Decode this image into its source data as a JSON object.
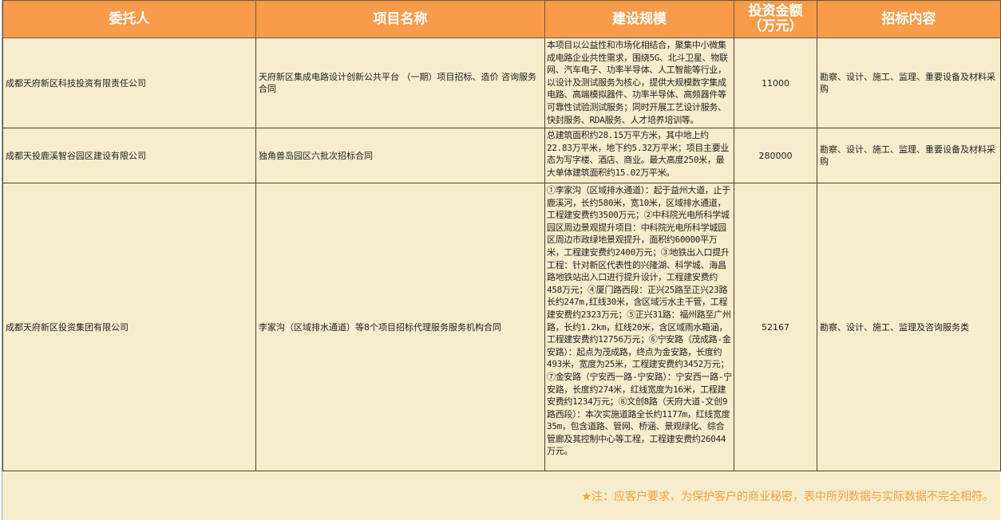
{
  "header": {
    "columns": [
      "委托人",
      "项目名称",
      "建设规模",
      "投资金额\n（万元）",
      "招标内容"
    ],
    "investment_line1": "投资金额",
    "investment_line2": "（万元）"
  },
  "rows": [
    {
      "client": "成都天府新区科技投资有限责任公司",
      "project": "天府新区集成电路设计创新公共平台 （一期）项目招标、造价 咨询服务合同",
      "scale": "本项目以公益性和市场化相结合，聚集中小微集成电路企业共性需求，围绕5G、北斗卫星、物联网、汽车电子、功率半导体、人工智能等行业，以设计及测试服务为核心，提供大规模数字集成电路、高端模拟器件、功率半导体、高频器件等可靠性试验测试服务；同时开展工艺设计服务、快封服务、RDA服务、人才培养培训等。",
      "amount": "11000",
      "content": "勘察、设计、施工、监理、重要设备及材料采购"
    },
    {
      "client": "成都天投鹿溪智谷园区建设有限公司",
      "project": "独角兽岛园区六批次招标合同",
      "scale": "总建筑面积约28.15万平方米，其中地上约22.83万平米，地下约5.32万平米；项目主要业态为写字楼、酒店、商业。最大高度250米，最大单体建筑面积约15.02万平米。",
      "amount": "280000",
      "content": "勘察、设计、施工、监理、重要设备及材料采购"
    },
    {
      "client": "成都天府新区投资集团有限公司",
      "project": "李家沟（区域排水通道）等8个项目招标代理服务服务机构合同",
      "scale": "①李家沟（区域排水通道）：起于益州大道，止于鹿溪河，长约580米，宽10米，区域排水通道，工程建安费约3500万元；②中科院光电所科学城园区周边景观提升项目：中科院光电所科学城园区周边市政绿地景观提升，面积约60000平万米，工程建安费约2400万元；③地铁出入口提升工程：针对新区代表性的兴隆湖、科学城、海昌路地铁站出入口进行提升设计，工程建安费约458万元；④厦门路西段：正兴25路至正兴23路长约247m,红线30米，含区域污水主干管，工程建安费约2323万元；⑤正兴31路：福州路至广州路，长约1.2km，红线20米，含区域雨水箱涵，工程建安费约12756万元；⑥宁安路（茂成路-金安路）：起点为茂成路，终点为金安路，长度约493米，宽度为25米，工程建安费约3452万元；⑦金安路（宁安西一路-宁安路）：宁安西一路-宁安路，长度约274米，红线宽度为16米，工程建安费约1234万元；⑧文创8路（天府大道-文创9路西段）：本次实施道路全长约1177m，红线宽度35m，包含道路、管网、桥涵、景观绿化、综合管廊及其控制中心等工程，工程建安费约26044万元。",
      "amount": "52167",
      "content": "勘察、设计、施工、监理及咨询服务类"
    }
  ],
  "footer": {
    "note": "★注：应客户要求，为保护客户的商业秘密，表中所列数据与实际数据不完全相符。"
  },
  "colors": {
    "header": "#F89B4B",
    "body": "#F7ECCB",
    "note": "#F0A040"
  }
}
